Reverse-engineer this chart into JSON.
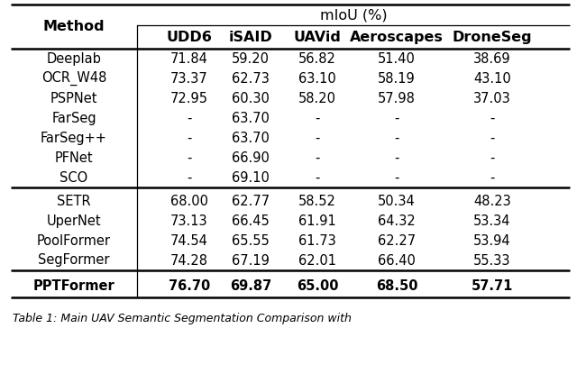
{
  "title": "mIoU (%)",
  "col_headers": [
    "Method",
    "UDD6",
    "iSAID",
    "UAVid",
    "Aeroscapes",
    "DroneSeg"
  ],
  "group1": [
    [
      "Deeplab",
      "71.84",
      "59.20",
      "56.82",
      "51.40",
      "38.69"
    ],
    [
      "OCR_W48",
      "73.37",
      "62.73",
      "63.10",
      "58.19",
      "43.10"
    ],
    [
      "PSPNet",
      "72.95",
      "60.30",
      "58.20",
      "57.98",
      "37.03"
    ],
    [
      "FarSeg",
      "-",
      "63.70",
      "-",
      "-",
      "-"
    ],
    [
      "FarSeg++",
      "-",
      "63.70",
      "-",
      "-",
      "-"
    ],
    [
      "PFNet",
      "-",
      "66.90",
      "-",
      "-",
      "-"
    ],
    [
      "SCO",
      "-",
      "69.10",
      "-",
      "-",
      "-"
    ]
  ],
  "group2": [
    [
      "SETR",
      "68.00",
      "62.77",
      "58.52",
      "50.34",
      "48.23"
    ],
    [
      "UperNet",
      "73.13",
      "66.45",
      "61.91",
      "64.32",
      "53.34"
    ],
    [
      "PoolFormer",
      "74.54",
      "65.55",
      "61.73",
      "62.27",
      "53.94"
    ],
    [
      "SegFormer",
      "74.28",
      "67.19",
      "62.01",
      "66.40",
      "55.33"
    ]
  ],
  "last_row": [
    "PPTFormer",
    "76.70",
    "69.87",
    "65.00",
    "68.50",
    "57.71"
  ],
  "caption": "Table 1: Main UAV Semantic Segmentation Comparison with",
  "bg_color": "#ffffff",
  "text_color": "#000000",
  "font_size": 10.5,
  "header_font_size": 11.5
}
